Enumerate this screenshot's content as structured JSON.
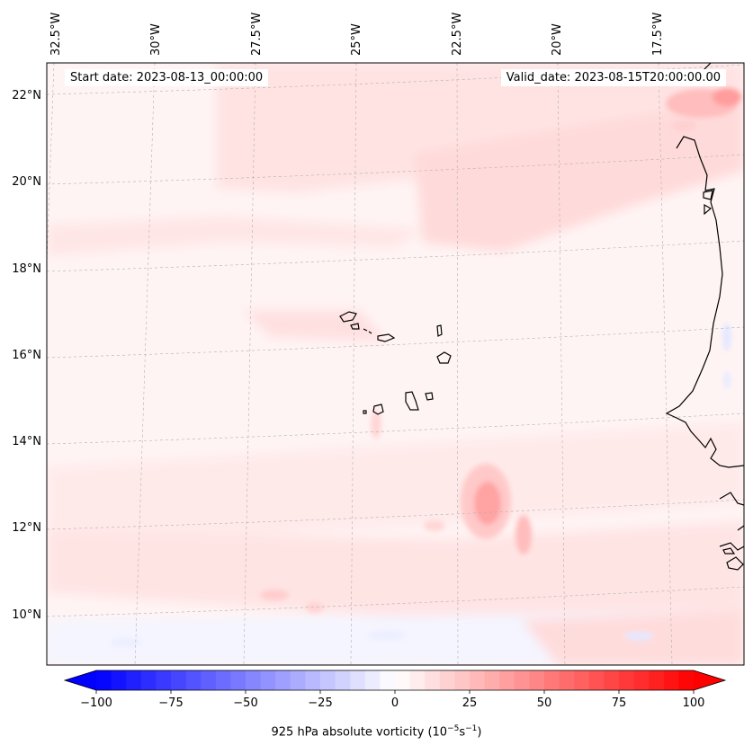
{
  "start_label": "Start date: 2023-08-13_00:00:00",
  "valid_label": "Valid_date: 2023-08-15T20:00:00.00",
  "lon_labels": [
    "32.5°W",
    "30°W",
    "27.5°W",
    "25°W",
    "22.5°W",
    "20°W",
    "17.5°W"
  ],
  "lat_labels": [
    "22°N",
    "20°N",
    "18°N",
    "16°N",
    "14°N",
    "12°N",
    "10°N"
  ],
  "colorbar": {
    "ticks": [
      "−100",
      "−75",
      "−50",
      "−25",
      "0",
      "25",
      "50",
      "75",
      "100"
    ],
    "label_text": "925 hPa absolute vorticity (10",
    "label_exp": "−5",
    "label_unit": "s",
    "label_exp2": "−1",
    "label_end": ")",
    "min": -100,
    "max": 100,
    "step": 5
  },
  "colors": {
    "negative": "#0000ff",
    "positive": "#ff0000",
    "coast": "#000000",
    "grid": "#b0b0b0"
  }
}
